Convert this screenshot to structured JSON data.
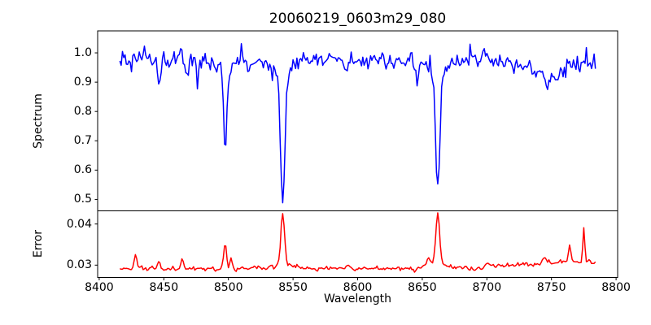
{
  "chart_data": {
    "type": "line",
    "title": "20060219_0603m29_080",
    "xlabel": "Wavelength",
    "grid": false,
    "legend": "none",
    "xlim": [
      8398.8,
      8801.2
    ],
    "x_ticks": [
      8400,
      8450,
      8500,
      8550,
      8600,
      8650,
      8700,
      8750,
      8800
    ],
    "x_tick_labels": [
      "8400",
      "8450",
      "8500",
      "8550",
      "8600",
      "8650",
      "8700",
      "8750",
      "8800"
    ],
    "x_data_start": 8416,
    "x_data_end": 8784,
    "x_step": 1.0,
    "panels": [
      {
        "ylabel": "Spectrum",
        "ylim": [
          0.461,
          1.075
        ],
        "y_ticks": [
          1.0,
          0.9,
          0.8,
          0.7,
          0.6,
          0.5
        ],
        "y_tick_labels": [
          "1.0",
          "0.9",
          "0.8",
          "0.7",
          "0.6",
          "0.5"
        ],
        "series": {
          "name": "spectrum",
          "color": "#0000ff",
          "line_width": 1.5,
          "continuum": 0.975,
          "noise_sigma": 0.016,
          "absorption_lines": [
            {
              "center": 8446.5,
              "depth": 0.1,
              "sigma": 1.0
            },
            {
              "center": 8468.0,
              "depth": 0.05,
              "sigma": 0.8
            },
            {
              "center": 8497.5,
              "depth": 0.28,
              "sigma": 1.2
            },
            {
              "center": 8497.5,
              "depth": 0.045,
              "sigma": 4.0
            },
            {
              "center": 8515.0,
              "depth": 0.045,
              "sigma": 0.8
            },
            {
              "center": 8542.0,
              "depth": 0.38,
              "sigma": 1.6
            },
            {
              "center": 8542.0,
              "depth": 0.1,
              "sigma": 5.0
            },
            {
              "center": 8592.0,
              "depth": 0.05,
              "sigma": 1.2
            },
            {
              "center": 8646.0,
              "depth": 0.1,
              "sigma": 0.9
            },
            {
              "center": 8662.0,
              "depth": 0.36,
              "sigma": 1.5
            },
            {
              "center": 8662.0,
              "depth": 0.085,
              "sigma": 4.5
            },
            {
              "center": 8747.0,
              "depth": 0.055,
              "sigma": 14.0
            },
            {
              "center": 8747.0,
              "depth": 0.05,
              "sigma": 1.0
            }
          ],
          "deep_line_centers": [
            8498,
            8542,
            8662
          ],
          "deep_line_minima": [
            0.65,
            0.49,
            0.52
          ]
        }
      },
      {
        "ylabel": "Error",
        "ylim": [
          0.027,
          0.0432
        ],
        "y_ticks": [
          0.04,
          0.03
        ],
        "y_tick_labels": [
          "0.04",
          "0.03"
        ],
        "series": {
          "name": "error",
          "color": "#ff0000",
          "line_width": 1.5,
          "baseline": 0.0292,
          "noise_sigma": 0.00027,
          "ramp": {
            "start": 8680,
            "span": 80,
            "amount": 0.0016
          },
          "peaks": [
            {
              "center": 8428.0,
              "amp": 0.0033,
              "sigma": 0.9
            },
            {
              "center": 8446.0,
              "amp": 0.0015,
              "sigma": 0.9
            },
            {
              "center": 8464.0,
              "amp": 0.0023,
              "sigma": 0.9
            },
            {
              "center": 8497.5,
              "amp": 0.0058,
              "sigma": 1.1
            },
            {
              "center": 8502.0,
              "amp": 0.0026,
              "sigma": 0.9
            },
            {
              "center": 8542.0,
              "amp": 0.0118,
              "sigma": 1.4
            },
            {
              "center": 8542.0,
              "amp": 0.0015,
              "sigma": 5.0
            },
            {
              "center": 8654.0,
              "amp": 0.0018,
              "sigma": 1.5
            },
            {
              "center": 8662.0,
              "amp": 0.012,
              "sigma": 1.4
            },
            {
              "center": 8662.0,
              "amp": 0.0015,
              "sigma": 5.0
            },
            {
              "center": 8745.0,
              "amp": 0.001,
              "sigma": 2.0
            },
            {
              "center": 8764.0,
              "amp": 0.004,
              "sigma": 1.0
            },
            {
              "center": 8775.0,
              "amp": 0.008,
              "sigma": 0.7
            }
          ]
        }
      }
    ]
  }
}
